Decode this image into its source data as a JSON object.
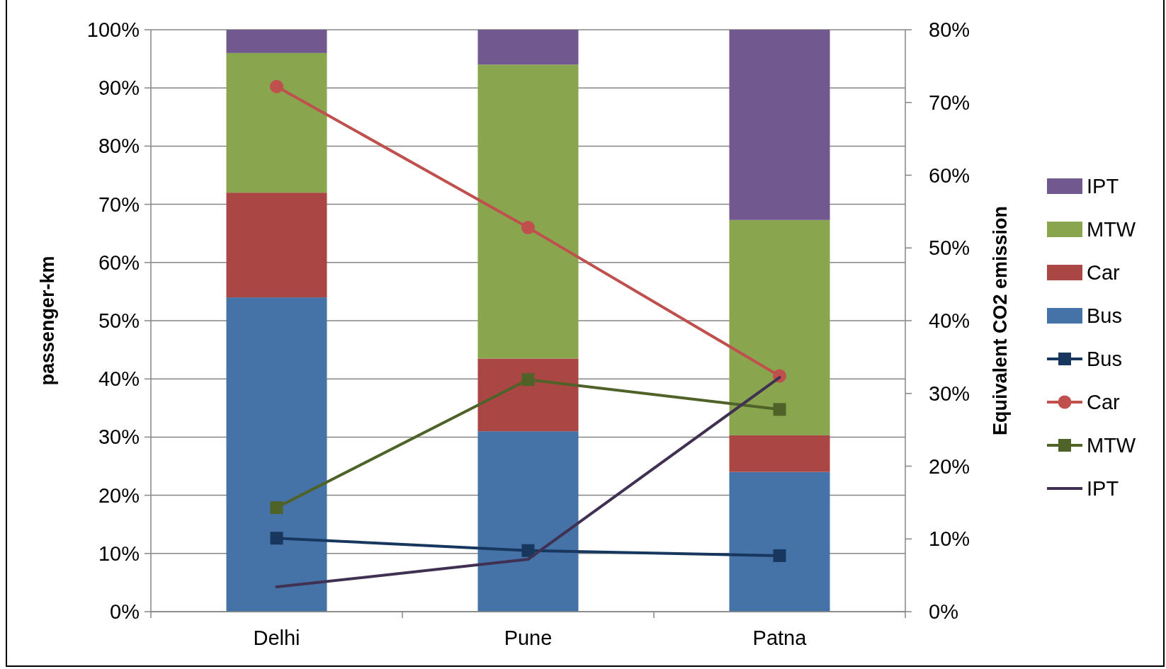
{
  "chart_data": {
    "type": "bar",
    "stacked": true,
    "categories": [
      "Delhi",
      "Pune",
      "Patna"
    ],
    "ylabel": "passenger-km",
    "y2label": "Equivalent CO2 emission",
    "ylim": [
      0,
      100
    ],
    "yticks": [
      {
        "value": 0,
        "label": "0%"
      },
      {
        "value": 10,
        "label": "10%"
      },
      {
        "value": 20,
        "label": "20%"
      },
      {
        "value": 30,
        "label": "30%"
      },
      {
        "value": 40,
        "label": "40%"
      },
      {
        "value": 50,
        "label": "50%"
      },
      {
        "value": 60,
        "label": "60%"
      },
      {
        "value": 70,
        "label": "70%"
      },
      {
        "value": 80,
        "label": "80%"
      },
      {
        "value": 90,
        "label": "90%"
      },
      {
        "value": 100,
        "label": "100%"
      }
    ],
    "y2lim": [
      0,
      80
    ],
    "y2ticks": [
      {
        "value": 0,
        "label": "0%"
      },
      {
        "value": 10,
        "label": "10%"
      },
      {
        "value": 20,
        "label": "20%"
      },
      {
        "value": 30,
        "label": "30%"
      },
      {
        "value": 40,
        "label": "40%"
      },
      {
        "value": 50,
        "label": "50%"
      },
      {
        "value": 60,
        "label": "60%"
      },
      {
        "value": 70,
        "label": "70%"
      },
      {
        "value": 80,
        "label": "80%"
      }
    ],
    "grid": "y",
    "legend": "right",
    "series": [
      {
        "name": "Bus",
        "color": "#4572a7",
        "values": [
          54,
          31,
          24
        ]
      },
      {
        "name": "Car",
        "color": "#aa4643",
        "values": [
          18,
          12.5,
          6.3
        ]
      },
      {
        "name": "MTW",
        "color": "#89a54e",
        "values": [
          24,
          50.5,
          37
        ]
      },
      {
        "name": "IPT",
        "color": "#71588f",
        "values": [
          4,
          6,
          32.7
        ]
      },
      {
        "name": "Bus",
        "type": "line",
        "axis": "y2",
        "marker": "square",
        "color": "#17375e",
        "values": [
          10.1,
          8.4,
          7.7
        ]
      },
      {
        "name": "Car",
        "type": "line",
        "axis": "y2",
        "marker": "circle",
        "color": "#c0504d",
        "values": [
          72.2,
          52.8,
          32.4
        ]
      },
      {
        "name": "MTW",
        "type": "line",
        "axis": "y2",
        "marker": "square",
        "color": "#4f6228",
        "values": [
          14.3,
          31.9,
          27.8
        ]
      },
      {
        "name": "IPT",
        "type": "line",
        "axis": "y2",
        "marker": "none",
        "color": "#403152",
        "values": [
          3.4,
          7.2,
          32.2
        ]
      }
    ]
  }
}
